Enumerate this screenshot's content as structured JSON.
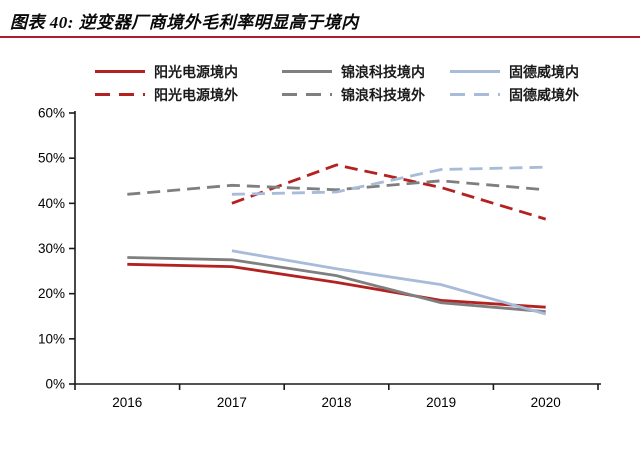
{
  "header": {
    "title": "图表 40: 逆变器厂商境外毛利率明显高于境内",
    "underline_color": "#B01E2E"
  },
  "chart_data": {
    "type": "line",
    "title": "逆变器厂商境外毛利率明显高于境内",
    "categories": [
      "2016",
      "2017",
      "2018",
      "2019",
      "2020"
    ],
    "series": [
      {
        "name": "阳光电源境内",
        "style": "solid",
        "color": "#B42121",
        "values": [
          26.5,
          26,
          22.5,
          18.5,
          17
        ]
      },
      {
        "name": "锦浪科技境内",
        "style": "solid",
        "color": "#7F7F7F",
        "values": [
          28,
          27.5,
          24,
          18,
          16
        ]
      },
      {
        "name": "固德威境内",
        "style": "solid",
        "color": "#A8BBD8",
        "values": [
          null,
          29.5,
          25.5,
          22,
          15.5
        ]
      },
      {
        "name": "阳光电源境外",
        "style": "dashed",
        "color": "#B42121",
        "values": [
          null,
          40,
          48.5,
          43.5,
          36.5
        ]
      },
      {
        "name": "锦浪科技境外",
        "style": "dashed",
        "color": "#7F7F7F",
        "values": [
          42,
          44,
          43,
          45,
          43
        ]
      },
      {
        "name": "固德威境外",
        "style": "dashed",
        "color": "#A8BBD8",
        "values": [
          null,
          42,
          42.5,
          47.5,
          48
        ]
      }
    ],
    "xlabel": "",
    "ylabel": "",
    "ylim": [
      0,
      60
    ],
    "ytick_step": 10,
    "ytick_labels": [
      "0%",
      "10%",
      "20%",
      "30%",
      "40%",
      "50%",
      "60%"
    ],
    "grid": false,
    "legend_position": "top"
  }
}
